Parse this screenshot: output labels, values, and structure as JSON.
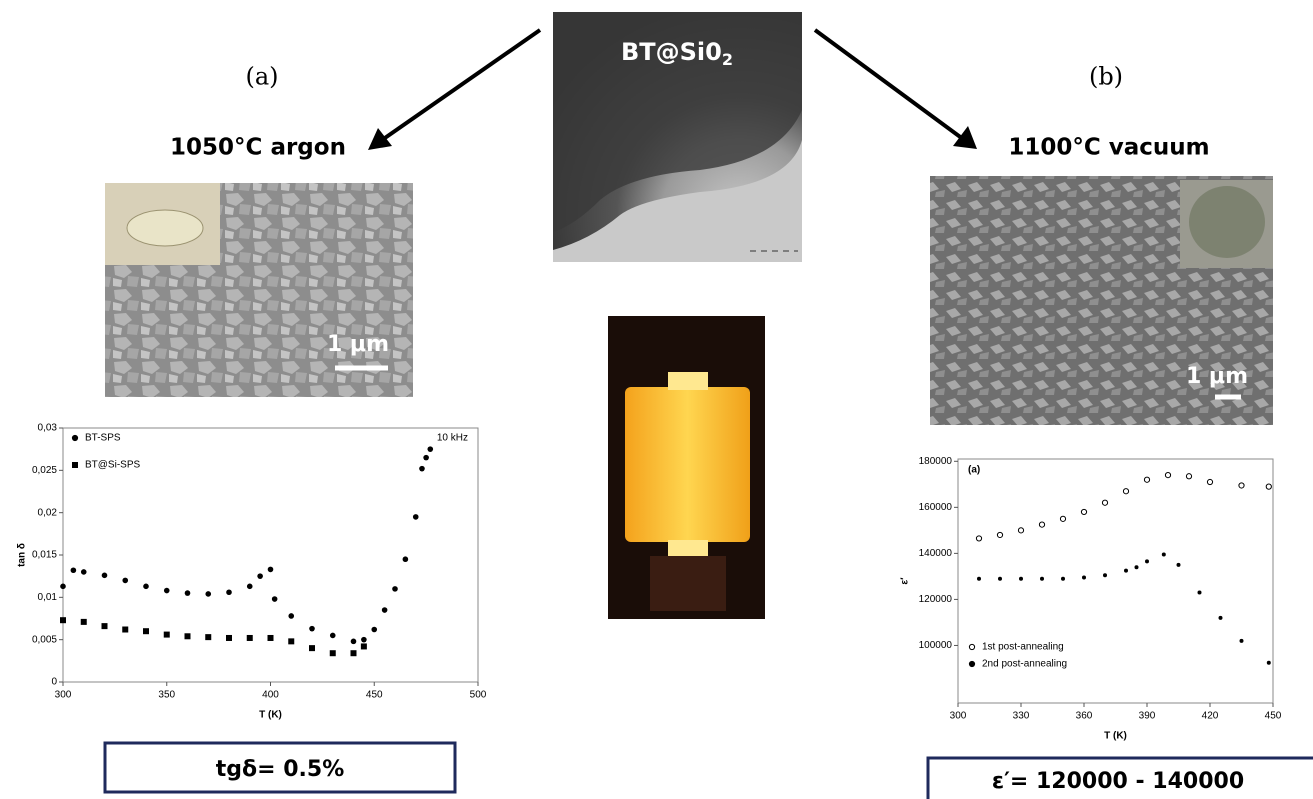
{
  "center_label": {
    "text": "BT@Si0",
    "subscript": "2"
  },
  "left": {
    "panel": "(a)",
    "condition": "1050°C  argon",
    "scale": "1 μm",
    "result": "tgδ= 0.5%"
  },
  "right": {
    "panel": "(b)",
    "condition": "1100°C  vacuum",
    "scale": "1 μm",
    "result": "ε′= 120000 - 140000"
  },
  "chart_data": [
    {
      "type": "scatter",
      "xlabel": "T (K)",
      "ylabel": "tan δ",
      "annotation": "10 kHz",
      "xlim": [
        300,
        500
      ],
      "xticks": [
        300,
        350,
        400,
        450,
        500
      ],
      "ylim": [
        0,
        0.03
      ],
      "yticks": [
        0,
        {
          "value": 0.005,
          "label": "0,005"
        },
        {
          "value": 0.01,
          "label": "0,01"
        },
        {
          "value": 0.015,
          "label": "0,015"
        },
        {
          "value": 0.02,
          "label": "0,02"
        },
        {
          "value": 0.025,
          "label": "0,025"
        },
        {
          "value": 0.03,
          "label": "0,03"
        }
      ],
      "legend": "upper left",
      "series": [
        {
          "name": "BT-SPS",
          "color": "#000000",
          "marker": "circle",
          "x": [
            300,
            305,
            310,
            320,
            330,
            340,
            350,
            360,
            370,
            380,
            390,
            395,
            400,
            402,
            410,
            420,
            430,
            440,
            445,
            450,
            455,
            460,
            465,
            470,
            473,
            475,
            477
          ],
          "values": [
            0.0113,
            0.0132,
            0.013,
            0.0126,
            0.012,
            0.0113,
            0.0108,
            0.0105,
            0.0104,
            0.0106,
            0.0113,
            0.0125,
            0.0133,
            0.0098,
            0.0078,
            0.0063,
            0.0055,
            0.0048,
            0.005,
            0.0062,
            0.0085,
            0.011,
            0.0145,
            0.0195,
            0.0252,
            0.0265,
            0.0275
          ]
        },
        {
          "name": "BT@Si-SPS",
          "color": "#000000",
          "marker": "square",
          "x": [
            300,
            310,
            320,
            330,
            340,
            350,
            360,
            370,
            380,
            390,
            400,
            410,
            420,
            430,
            440,
            445
          ],
          "values": [
            0.0073,
            0.0071,
            0.0066,
            0.0062,
            0.006,
            0.0056,
            0.0054,
            0.0053,
            0.0052,
            0.0052,
            0.0052,
            0.0048,
            0.004,
            0.0034,
            0.0034,
            0.0042
          ]
        }
      ]
    },
    {
      "type": "scatter",
      "xlabel": "T (K)",
      "ylabel": "ε′",
      "annotation": "(a)",
      "xlim": [
        300,
        450
      ],
      "xticks": [
        300,
        330,
        360,
        390,
        420,
        450
      ],
      "ylim": [
        75000,
        181000
      ],
      "yticks": [
        100000,
        120000,
        140000,
        160000,
        180000
      ],
      "legend": "lower left",
      "series": [
        {
          "name": "1st post-annealing",
          "color": "#000000",
          "marker": "open-circle",
          "x": [
            310,
            320,
            330,
            340,
            350,
            360,
            370,
            380,
            390,
            400,
            410,
            420,
            435,
            448
          ],
          "values": [
            146500,
            148000,
            150000,
            152500,
            155000,
            158000,
            162000,
            167000,
            172000,
            174000,
            173500,
            171000,
            169500,
            169000
          ]
        },
        {
          "name": "2nd post-annealing",
          "color": "#000000",
          "marker": "dot",
          "x": [
            310,
            320,
            330,
            340,
            350,
            360,
            370,
            380,
            385,
            390,
            398,
            405,
            415,
            425,
            435,
            448
          ],
          "values": [
            129000,
            129000,
            129000,
            129000,
            129000,
            129500,
            130500,
            132500,
            134000,
            136500,
            139500,
            135000,
            123000,
            112000,
            102000,
            92500
          ]
        }
      ]
    }
  ]
}
